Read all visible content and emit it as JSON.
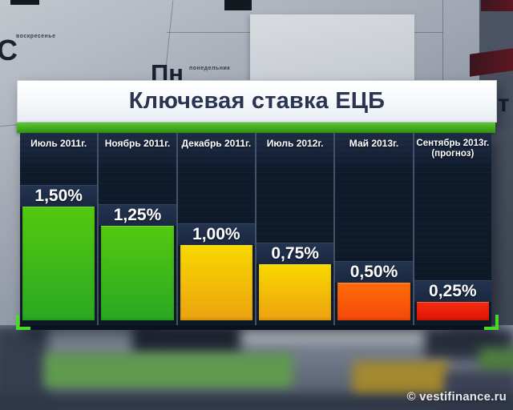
{
  "title": "Ключевая ставка ЕЦБ",
  "watermark": "© vestifinance.ru",
  "backdrop": {
    "letters": [
      {
        "text": "С",
        "sub": "воскресенье"
      },
      {
        "text": "Пн",
        "sub": "понедельник"
      },
      {
        "text": "т",
        "sub": ""
      }
    ]
  },
  "chart_data": {
    "type": "bar",
    "title": "Ключевая ставка ЕЦБ",
    "categories": [
      "Июль 2011г.",
      "Ноябрь 2011г.",
      "Декабрь 2011г.",
      "Июль 2012г.",
      "Май 2013г.",
      "Сентябрь 2013г.\n(прогноз)"
    ],
    "values": [
      1.5,
      1.25,
      1.0,
      0.75,
      0.5,
      0.25
    ],
    "value_labels": [
      "1,50%",
      "1,25%",
      "1,00%",
      "0,75%",
      "0,50%",
      "0,25%"
    ],
    "bar_colors": [
      "green",
      "green",
      "yellow",
      "yellow",
      "orange",
      "red"
    ],
    "unit": "%",
    "ylim": [
      0,
      1.6
    ],
    "grid": false,
    "legend": "none"
  },
  "colors": {
    "accent_green_stripe": "#43af1d",
    "panel_dark": "#0e1826",
    "title_text": "#2c3454",
    "bar_gradients": {
      "green": [
        "#54c90f",
        "#2aa822"
      ],
      "yellow": [
        "#f8d800",
        "#eda20f"
      ],
      "orange": [
        "#ff6c0a",
        "#f4490b"
      ],
      "red": [
        "#f52b10",
        "#df1505"
      ]
    }
  }
}
